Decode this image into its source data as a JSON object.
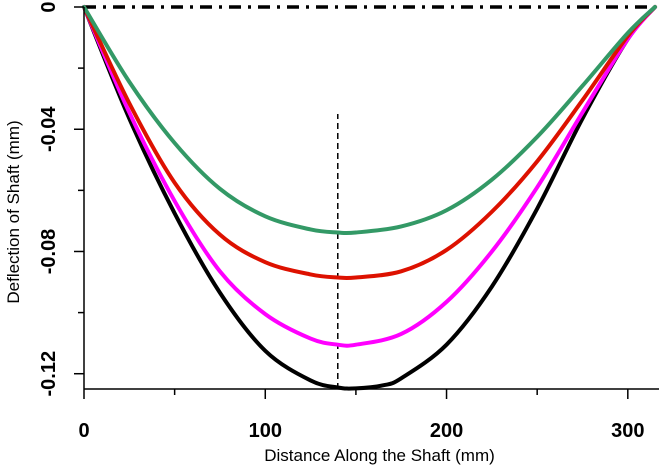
{
  "chart_data": {
    "type": "line",
    "xlabel": "Distance Along the Shaft (mm)",
    "ylabel": "Deflection of Shaft (mm)",
    "xlim": [
      0,
      315
    ],
    "ylim": [
      -0.125,
      0.0
    ],
    "x_ticks_major": [
      0,
      100,
      200,
      300
    ],
    "x_ticks_minor": [
      50,
      150,
      250
    ],
    "y_ticks_major": [
      0,
      -0.04,
      -0.08,
      -0.12
    ],
    "y_ticks_minor": [
      -0.02,
      -0.06,
      -0.1
    ],
    "x_tick_labels": [
      "0",
      "100",
      "200",
      "300"
    ],
    "y_tick_labels": [
      "0",
      "-0.04",
      "-0.08",
      "-0.12"
    ],
    "grid": false,
    "legend": "none",
    "reference_lines": [
      {
        "kind": "horizontal",
        "y": 0.0,
        "style": "dash-dot",
        "color": "#000000"
      },
      {
        "kind": "vertical",
        "x": 140,
        "y_range": [
          -0.125,
          -0.035
        ],
        "style": "dashed",
        "color": "#000000"
      }
    ],
    "series": [
      {
        "color": "#000000",
        "x": [
          0,
          25,
          50,
          75,
          100,
          125,
          140,
          150,
          165,
          175,
          200,
          225,
          250,
          275,
          300,
          315
        ],
        "values": [
          0,
          -0.0365,
          -0.0675,
          -0.0935,
          -0.1125,
          -0.1222,
          -0.1245,
          -0.1248,
          -0.1238,
          -0.1215,
          -0.1105,
          -0.0915,
          -0.066,
          -0.0365,
          -0.0105,
          0
        ]
      },
      {
        "color": "#ff00ff",
        "x": [
          0,
          25,
          50,
          75,
          100,
          125,
          140,
          150,
          175,
          200,
          225,
          250,
          275,
          300,
          315
        ],
        "values": [
          0,
          -0.0345,
          -0.0635,
          -0.0865,
          -0.1005,
          -0.1085,
          -0.1105,
          -0.1105,
          -0.107,
          -0.0965,
          -0.08,
          -0.059,
          -0.0345,
          -0.0105,
          0
        ]
      },
      {
        "color": "#dd1100",
        "x": [
          0,
          25,
          50,
          75,
          100,
          125,
          140,
          150,
          175,
          200,
          225,
          250,
          275,
          300,
          315
        ],
        "values": [
          0,
          -0.0315,
          -0.0575,
          -0.0745,
          -0.0835,
          -0.0875,
          -0.0885,
          -0.0885,
          -0.0865,
          -0.0795,
          -0.067,
          -0.0505,
          -0.0305,
          -0.0095,
          0
        ]
      },
      {
        "color": "#339966",
        "x": [
          0,
          25,
          50,
          75,
          100,
          125,
          140,
          150,
          175,
          200,
          225,
          250,
          275,
          300,
          315
        ],
        "values": [
          0,
          -0.0245,
          -0.0445,
          -0.0595,
          -0.0685,
          -0.0728,
          -0.0738,
          -0.0738,
          -0.0718,
          -0.0665,
          -0.0565,
          -0.0425,
          -0.0258,
          -0.0085,
          0
        ]
      }
    ]
  }
}
